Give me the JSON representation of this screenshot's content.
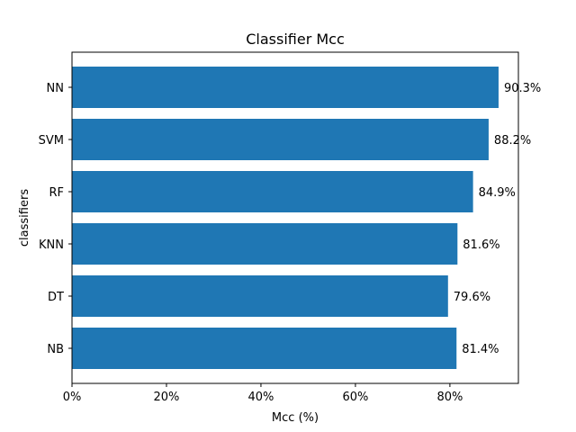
{
  "chart_data": {
    "type": "bar",
    "orientation": "horizontal",
    "title": "Classifier Mcc",
    "xlabel": "Mcc (%)",
    "ylabel": "classifiers",
    "categories": [
      "NN",
      "SVM",
      "RF",
      "KNN",
      "DT",
      "NB"
    ],
    "values": [
      90.3,
      88.2,
      84.9,
      81.6,
      79.6,
      81.4
    ],
    "data_labels": [
      "90.3%",
      "88.2%",
      "84.9%",
      "81.6%",
      "79.6%",
      "81.4%"
    ],
    "xlim": [
      0,
      94.5
    ],
    "xticks": [
      0,
      20,
      40,
      60,
      80
    ],
    "xtick_labels": [
      "0%",
      "20%",
      "40%",
      "60%",
      "80%"
    ],
    "grid": false,
    "bar_color": "#1f77b4"
  }
}
